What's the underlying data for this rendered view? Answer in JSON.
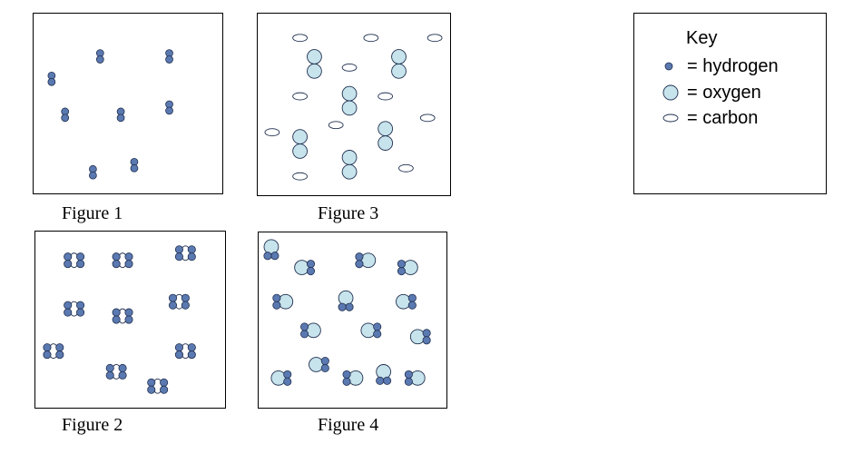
{
  "figures": {
    "fig1": {
      "caption": "Figure 1"
    },
    "fig2": {
      "caption": "Figure 2"
    },
    "fig3": {
      "caption": "Figure 3"
    },
    "fig4": {
      "caption": "Figure 4"
    }
  },
  "key": {
    "title": "Key",
    "hydrogen": "= hydrogen",
    "oxygen": "= oxygen",
    "carbon": "= carbon"
  },
  "colors": {
    "hydrogen": "#5b79b1",
    "oxygen": "#c7e3ec",
    "carbon": "#ffffff",
    "stroke": "#1f2f4f"
  }
}
